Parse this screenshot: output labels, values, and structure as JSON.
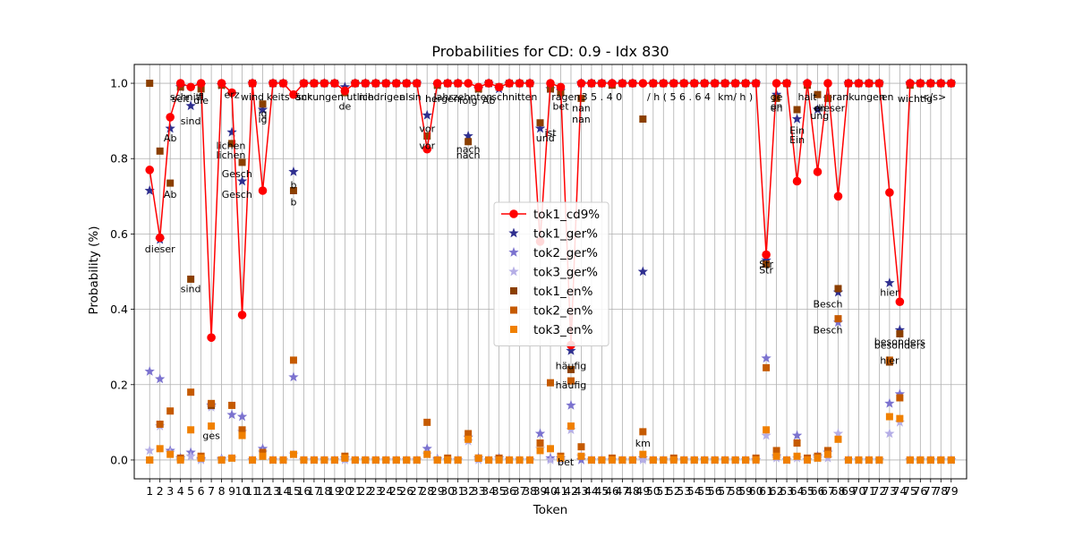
{
  "chart_data": {
    "type": "line",
    "title": "Probabilities for CD: 0.9 - Idx 830",
    "xlabel": "Token",
    "ylabel": "Probability (%)",
    "x": [
      1,
      2,
      3,
      4,
      5,
      6,
      7,
      8,
      9,
      10,
      11,
      12,
      13,
      14,
      15,
      16,
      17,
      18,
      19,
      20,
      21,
      22,
      23,
      24,
      25,
      26,
      27,
      28,
      29,
      30,
      31,
      32,
      33,
      34,
      35,
      36,
      37,
      38,
      39,
      40,
      41,
      42,
      43,
      44,
      45,
      46,
      47,
      48,
      49,
      50,
      51,
      52,
      53,
      54,
      55,
      56,
      57,
      58,
      59,
      60,
      61,
      62,
      63,
      64,
      65,
      66,
      67,
      68,
      69,
      70,
      71,
      72,
      73,
      74,
      75,
      76,
      77,
      78,
      79
    ],
    "xlim": [
      -0.5,
      80.5
    ],
    "ylim": [
      -0.05,
      1.05
    ],
    "yticks": [
      0.0,
      0.2,
      0.4,
      0.6,
      0.8,
      1.0
    ],
    "grid": true,
    "legend_position": "center",
    "series": [
      {
        "name": "tok1_cd9%",
        "color": "#ff0000",
        "marker": "circle",
        "line": true,
        "values": [
          0.77,
          0.59,
          0.91,
          1.0,
          0.99,
          1.0,
          0.325,
          1.0,
          0.975,
          0.385,
          1.0,
          0.715,
          1.0,
          1.0,
          0.97,
          1.0,
          1.0,
          1.0,
          1.0,
          0.98,
          1.0,
          1.0,
          1.0,
          1.0,
          1.0,
          1.0,
          1.0,
          0.825,
          1.0,
          1.0,
          1.0,
          1.0,
          0.99,
          1.0,
          0.99,
          1.0,
          1.0,
          1.0,
          0.58,
          1.0,
          0.99,
          0.305,
          1.0,
          1.0,
          1.0,
          1.0,
          1.0,
          1.0,
          1.0,
          1.0,
          1.0,
          1.0,
          1.0,
          1.0,
          1.0,
          1.0,
          1.0,
          1.0,
          1.0,
          1.0,
          0.545,
          1.0,
          1.0,
          0.74,
          1.0,
          0.765,
          1.0,
          0.7,
          1.0,
          1.0,
          1.0,
          1.0,
          0.71,
          0.42,
          1.0,
          1.0,
          1.0,
          1.0,
          1.0
        ]
      },
      {
        "name": "tok1_ger%",
        "color": "#2e2e8e",
        "marker": "star",
        "values": [
          0.715,
          0.585,
          0.88,
          0.99,
          0.94,
          0.995,
          0.145,
          0.995,
          0.87,
          0.74,
          1.0,
          0.93,
          1.0,
          1.0,
          0.765,
          1.0,
          1.0,
          1.0,
          1.0,
          0.99,
          1.0,
          1.0,
          1.0,
          1.0,
          1.0,
          1.0,
          1.0,
          0.915,
          0.995,
          1.0,
          1.0,
          0.86,
          0.985,
          1.0,
          0.985,
          1.0,
          1.0,
          1.0,
          0.88,
          0.985,
          0.98,
          0.29,
          1.0,
          1.0,
          1.0,
          1.0,
          1.0,
          1.0,
          0.5,
          1.0,
          1.0,
          1.0,
          1.0,
          1.0,
          1.0,
          1.0,
          1.0,
          1.0,
          1.0,
          1.0,
          0.53,
          0.97,
          1.0,
          0.905,
          1.0,
          0.93,
          0.96,
          0.445,
          1.0,
          1.0,
          1.0,
          1.0,
          0.47,
          0.345,
          1.0,
          1.0,
          1.0,
          1.0,
          1.0
        ]
      },
      {
        "name": "tok2_ger%",
        "color": "#7b72cf",
        "marker": "star",
        "values": [
          0.235,
          0.215,
          0.025,
          0.005,
          0.02,
          0.003,
          0.145,
          0.003,
          0.12,
          0.115,
          0.0,
          0.03,
          0.0,
          0.0,
          0.22,
          0.0,
          0.0,
          0.0,
          0.0,
          0.005,
          0.0,
          0.0,
          0.0,
          0.0,
          0.0,
          0.0,
          0.0,
          0.03,
          0.003,
          0.0,
          0.0,
          0.06,
          0.005,
          0.0,
          0.005,
          0.0,
          0.0,
          0.0,
          0.07,
          0.005,
          0.005,
          0.145,
          0.0,
          0.0,
          0.0,
          0.0,
          0.0,
          0.0,
          0.005,
          0.0,
          0.0,
          0.0,
          0.0,
          0.0,
          0.0,
          0.0,
          0.0,
          0.0,
          0.0,
          0.0,
          0.27,
          0.01,
          0.0,
          0.065,
          0.0,
          0.01,
          0.02,
          0.365,
          0.0,
          0.0,
          0.0,
          0.0,
          0.15,
          0.175,
          0.0,
          0.0,
          0.0,
          0.0,
          0.0
        ]
      },
      {
        "name": "tok3_ger%",
        "color": "#b5aee6",
        "marker": "star",
        "values": [
          0.025,
          0.09,
          0.02,
          0.0,
          0.01,
          0.0,
          0.14,
          0.0,
          0.005,
          0.075,
          0.0,
          0.02,
          0.0,
          0.0,
          0.015,
          0.0,
          0.0,
          0.0,
          0.0,
          0.0,
          0.0,
          0.0,
          0.0,
          0.0,
          0.0,
          0.0,
          0.0,
          0.015,
          0.0,
          0.0,
          0.0,
          0.05,
          0.0,
          0.0,
          0.0,
          0.0,
          0.0,
          0.0,
          0.03,
          0.0,
          0.0,
          0.08,
          0.01,
          0.0,
          0.0,
          0.0,
          0.0,
          0.0,
          0.0,
          0.0,
          0.0,
          0.0,
          0.0,
          0.0,
          0.0,
          0.0,
          0.0,
          0.0,
          0.0,
          0.0,
          0.065,
          0.005,
          0.0,
          0.005,
          0.0,
          0.005,
          0.005,
          0.07,
          0.0,
          0.0,
          0.0,
          0.0,
          0.07,
          0.1,
          0.0,
          0.0,
          0.0,
          0.0,
          0.0
        ]
      },
      {
        "name": "tok1_en%",
        "color": "#8b3f00",
        "marker": "square",
        "values": [
          1.0,
          0.82,
          0.735,
          0.99,
          0.48,
          0.985,
          0.145,
          0.995,
          0.84,
          0.79,
          1.0,
          0.945,
          1.0,
          1.0,
          0.715,
          1.0,
          1.0,
          1.0,
          1.0,
          0.975,
          1.0,
          1.0,
          1.0,
          1.0,
          1.0,
          1.0,
          1.0,
          0.86,
          0.995,
          1.0,
          1.0,
          0.845,
          0.985,
          1.0,
          0.99,
          1.0,
          1.0,
          1.0,
          0.895,
          0.985,
          0.975,
          0.24,
          0.96,
          1.0,
          1.0,
          0.995,
          1.0,
          1.0,
          0.905,
          1.0,
          1.0,
          1.0,
          1.0,
          1.0,
          1.0,
          1.0,
          1.0,
          1.0,
          1.0,
          1.0,
          0.52,
          0.96,
          1.0,
          0.93,
          0.995,
          0.97,
          0.96,
          0.455,
          1.0,
          1.0,
          1.0,
          1.0,
          0.26,
          0.335,
          0.995,
          1.0,
          1.0,
          1.0,
          1.0
        ]
      },
      {
        "name": "tok2_en%",
        "color": "#c55a00",
        "marker": "square",
        "values": [
          0.0,
          0.095,
          0.13,
          0.005,
          0.18,
          0.01,
          0.15,
          0.0,
          0.145,
          0.08,
          0.0,
          0.02,
          0.0,
          0.0,
          0.265,
          0.0,
          0.0,
          0.0,
          0.0,
          0.01,
          0.0,
          0.0,
          0.0,
          0.0,
          0.0,
          0.0,
          0.0,
          0.1,
          0.0,
          0.005,
          0.0,
          0.07,
          0.005,
          0.0,
          0.005,
          0.0,
          0.0,
          0.0,
          0.045,
          0.205,
          0.01,
          0.21,
          0.035,
          0.0,
          0.0,
          0.005,
          0.0,
          0.0,
          0.075,
          0.0,
          0.0,
          0.005,
          0.0,
          0.0,
          0.0,
          0.0,
          0.0,
          0.0,
          0.0,
          0.005,
          0.245,
          0.025,
          0.0,
          0.045,
          0.005,
          0.01,
          0.025,
          0.375,
          0.0,
          0.0,
          0.0,
          0.0,
          0.265,
          0.165,
          0.0,
          0.0,
          0.0,
          0.0,
          0.0
        ]
      },
      {
        "name": "tok3_en%",
        "color": "#f08000",
        "marker": "square",
        "values": [
          0.0,
          0.03,
          0.015,
          0.0,
          0.08,
          0.005,
          0.09,
          0.0,
          0.005,
          0.065,
          0.0,
          0.01,
          0.0,
          0.0,
          0.015,
          0.0,
          0.0,
          0.0,
          0.0,
          0.005,
          0.0,
          0.0,
          0.0,
          0.0,
          0.0,
          0.0,
          0.0,
          0.015,
          0.0,
          0.0,
          0.0,
          0.055,
          0.005,
          0.0,
          0.0,
          0.0,
          0.0,
          0.0,
          0.025,
          0.03,
          0.005,
          0.09,
          0.01,
          0.0,
          0.0,
          0.0,
          0.0,
          0.0,
          0.015,
          0.0,
          0.0,
          0.0,
          0.0,
          0.0,
          0.0,
          0.0,
          0.0,
          0.0,
          0.0,
          0.0,
          0.08,
          0.01,
          0.0,
          0.01,
          0.0,
          0.005,
          0.015,
          0.055,
          0.0,
          0.0,
          0.0,
          0.0,
          0.115,
          0.11,
          0.0,
          0.0,
          0.0,
          0.0,
          0.0
        ]
      }
    ],
    "annotations": [
      {
        "x": 2,
        "y": 0.56,
        "text": "dieser"
      },
      {
        "x": 3,
        "y": 0.855,
        "text": "Ab"
      },
      {
        "x": 3,
        "y": 0.705,
        "text": "Ab"
      },
      {
        "x": 4,
        "y": 0.96,
        "text": "seit"
      },
      {
        "x": 4.6,
        "y": 0.965,
        "text": "schnitt"
      },
      {
        "x": 5,
        "y": 0.9,
        "text": "sind"
      },
      {
        "x": 5,
        "y": 0.455,
        "text": "sind"
      },
      {
        "x": 6,
        "y": 0.955,
        "text": "die"
      },
      {
        "x": 6,
        "y": 0.965,
        "text": "fl"
      },
      {
        "x": 7,
        "y": 0.065,
        "text": "ges"
      },
      {
        "x": 9,
        "y": 0.97,
        "text": "erz"
      },
      {
        "x": 8.9,
        "y": 0.835,
        "text": "lichen"
      },
      {
        "x": 8.9,
        "y": 0.81,
        "text": "lichen"
      },
      {
        "x": 9.5,
        "y": 0.76,
        "text": "Gesch"
      },
      {
        "x": 9.5,
        "y": 0.705,
        "text": "Gesch"
      },
      {
        "x": 11,
        "y": 0.965,
        "text": "wind"
      },
      {
        "x": 12,
        "y": 0.92,
        "text": "ig"
      },
      {
        "x": 12,
        "y": 0.905,
        "text": "ig"
      },
      {
        "x": 13.5,
        "y": 0.965,
        "text": "keits"
      },
      {
        "x": 15,
        "y": 0.73,
        "text": "b"
      },
      {
        "x": 15,
        "y": 0.685,
        "text": "b"
      },
      {
        "x": 16,
        "y": 0.965,
        "text": "scr"
      },
      {
        "x": 17.5,
        "y": 0.965,
        "text": "änkungen"
      },
      {
        "x": 20,
        "y": 0.94,
        "text": "de"
      },
      {
        "x": 21.5,
        "y": 0.965,
        "text": "utlich"
      },
      {
        "x": 23.5,
        "y": 0.965,
        "text": "niedriger"
      },
      {
        "x": 26,
        "y": 0.965,
        "text": "als"
      },
      {
        "x": 27,
        "y": 0.965,
        "text": "in"
      },
      {
        "x": 28,
        "y": 0.88,
        "text": "vor"
      },
      {
        "x": 28,
        "y": 0.835,
        "text": "vor"
      },
      {
        "x": 29.5,
        "y": 0.96,
        "text": "hergen"
      },
      {
        "x": 31.5,
        "y": 0.965,
        "text": "Jahrzehnten"
      },
      {
        "x": 32,
        "y": 0.955,
        "text": "folg"
      },
      {
        "x": 32,
        "y": 0.825,
        "text": "nach"
      },
      {
        "x": 32,
        "y": 0.81,
        "text": "nach"
      },
      {
        "x": 34,
        "y": 0.955,
        "text": "Ab"
      },
      {
        "x": 36.5,
        "y": 0.965,
        "text": "schnitten"
      },
      {
        "x": 40,
        "y": 0.87,
        "text": "ist"
      },
      {
        "x": 39.5,
        "y": 0.855,
        "text": "und"
      },
      {
        "x": 41,
        "y": 0.94,
        "text": "bet"
      },
      {
        "x": 41.5,
        "y": 0.965,
        "text": "ragen"
      },
      {
        "x": 41,
        "y": -0.005,
        "text": "b"
      },
      {
        "x": 41.8,
        "y": -0.005,
        "text": "et"
      },
      {
        "x": 42,
        "y": 0.25,
        "text": "häufig"
      },
      {
        "x": 42,
        "y": 0.2,
        "text": "häufig"
      },
      {
        "x": 43,
        "y": 0.935,
        "text": "nan"
      },
      {
        "x": 43,
        "y": 0.905,
        "text": "nan"
      },
      {
        "x": 45,
        "y": 0.965,
        "text": "3 5 . 4 0"
      },
      {
        "x": 49,
        "y": 0.045,
        "text": "km"
      },
      {
        "x": 52.5,
        "y": 0.965,
        "text": "/ h ( 5 6 . 6 4"
      },
      {
        "x": 58,
        "y": 0.965,
        "text": "km/ h )"
      },
      {
        "x": 61,
        "y": 0.52,
        "text": "Str"
      },
      {
        "x": 61,
        "y": 0.505,
        "text": "Str"
      },
      {
        "x": 62,
        "y": 0.965,
        "text": "ge"
      },
      {
        "x": 62,
        "y": 0.94,
        "text": "en"
      },
      {
        "x": 62,
        "y": 0.935,
        "text": "en"
      },
      {
        "x": 64,
        "y": 0.875,
        "text": "Ein"
      },
      {
        "x": 64,
        "y": 0.85,
        "text": "Ein"
      },
      {
        "x": 65,
        "y": 0.965,
        "text": "halt"
      },
      {
        "x": 66.2,
        "y": 0.935,
        "text": "en"
      },
      {
        "x": 66.2,
        "y": 0.915,
        "text": "ung"
      },
      {
        "x": 67.2,
        "y": 0.935,
        "text": "dieser"
      },
      {
        "x": 67,
        "y": 0.415,
        "text": "Besch"
      },
      {
        "x": 67,
        "y": 0.345,
        "text": "Besch"
      },
      {
        "x": 70,
        "y": 0.965,
        "text": "rankungen"
      },
      {
        "x": 72.8,
        "y": 0.965,
        "text": "en"
      },
      {
        "x": 73,
        "y": 0.445,
        "text": "hier"
      },
      {
        "x": 73,
        "y": 0.265,
        "text": "hier"
      },
      {
        "x": 74,
        "y": 0.315,
        "text": "besonders"
      },
      {
        "x": 74,
        "y": 0.305,
        "text": "besonders"
      },
      {
        "x": 75.5,
        "y": 0.96,
        "text": "wichtig"
      },
      {
        "x": 77.3,
        "y": 0.965,
        "text": "</s>"
      }
    ]
  }
}
